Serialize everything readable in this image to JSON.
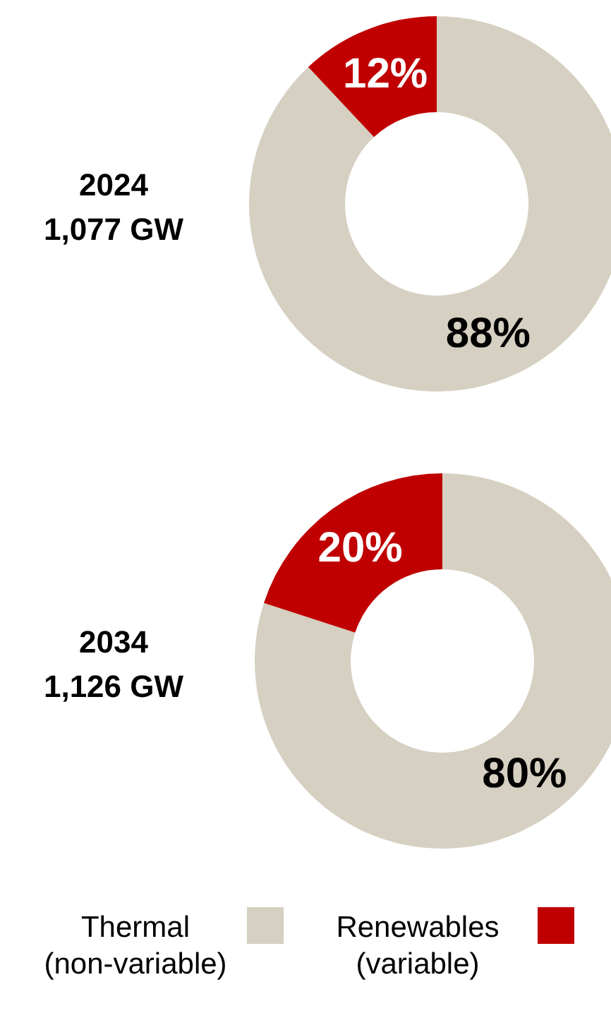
{
  "chart_data": [
    {
      "type": "donut",
      "title": "2024",
      "subtitle": "1,077 GW",
      "categories": [
        "Thermal (non-variable)",
        "Renewables (variable)"
      ],
      "values": [
        88,
        12
      ],
      "colors": [
        "#d6d0c2",
        "#c00000"
      ],
      "value_labels": [
        "88%",
        "12%"
      ],
      "legend": "bottom"
    },
    {
      "type": "donut",
      "title": "2034",
      "subtitle": "1,126 GW",
      "values": [
        80,
        20
      ],
      "colors": [
        "#d6d0c2",
        "#c00000"
      ],
      "value_labels": [
        "80%",
        "20%"
      ]
    }
  ]
}
